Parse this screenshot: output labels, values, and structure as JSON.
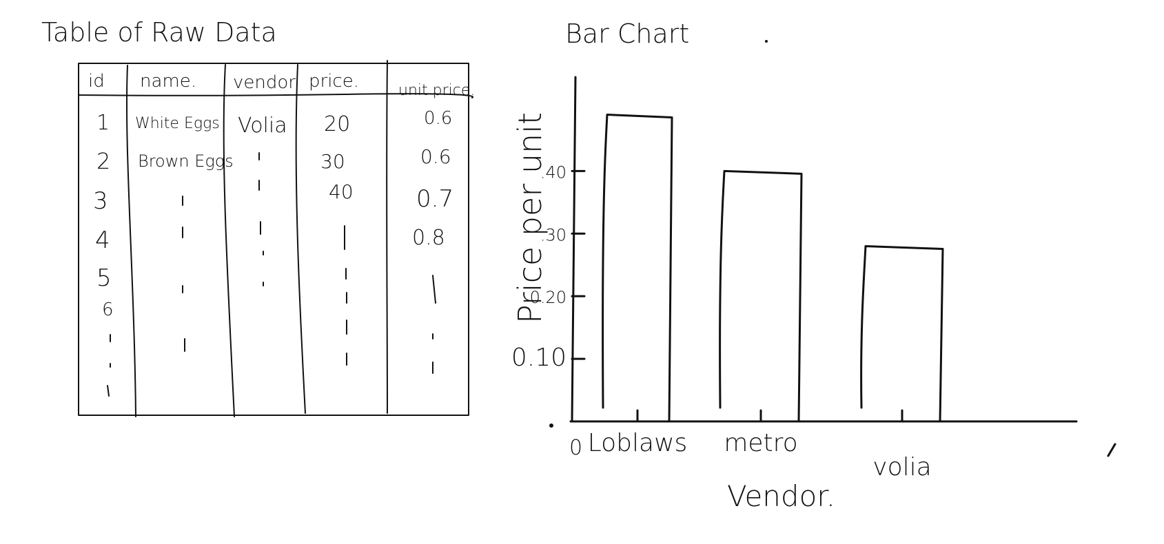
{
  "table": {
    "title": "Table of Raw Data",
    "headers": [
      "id",
      "name.",
      "vendor",
      "price.",
      "unit price."
    ],
    "rows": [
      [
        "1",
        "White Eggs",
        "Volia",
        "20",
        "0.6"
      ],
      [
        "2",
        "Brown Eggs",
        "",
        "30",
        "0.6"
      ],
      [
        "3",
        "",
        "",
        "40",
        "0.7"
      ],
      [
        "4",
        "",
        "",
        "",
        "0.8"
      ],
      [
        "5",
        "",
        "",
        "",
        ""
      ],
      [
        "6",
        "",
        "",
        "",
        ""
      ]
    ]
  },
  "chart_data": {
    "type": "bar",
    "title": "Bar Chart",
    "xlabel": "Vendor.",
    "ylabel": "Price per unit",
    "categories": [
      "Loblaws",
      "metro",
      "volia"
    ],
    "values": [
      0.49,
      0.4,
      0.28
    ],
    "yticks": [
      {
        "value": 0.1,
        "label": "0.10"
      },
      {
        "value": 0.2,
        "label": "0.20"
      },
      {
        "value": 0.3,
        "label": ".30"
      },
      {
        "value": 0.4,
        "label": ".40"
      }
    ],
    "origin_label": "0",
    "ylim": [
      0,
      0.55
    ],
    "grid": false,
    "legend": "none"
  }
}
